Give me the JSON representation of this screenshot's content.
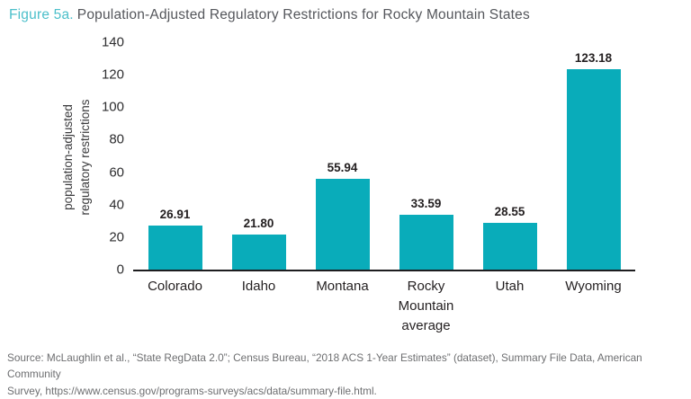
{
  "figure": {
    "title_prefix": "Figure 5a.",
    "title_rest": "Population-Adjusted Regulatory Restrictions for Rocky Mountain States",
    "source_line1": "Source: McLaughlin et al., “State RegData 2.0”; Census Bureau, “2018 ACS 1-Year Estimates” (dataset), Summary File Data, American Community",
    "source_line2": "Survey, https://www.census.gov/programs-surveys/acs/data/summary-file.html."
  },
  "colors": {
    "bar": "#09acba",
    "title_accent": "#4bbfca",
    "title_text": "#54565b",
    "axis_text": "#2d2d2f",
    "value_label_text": "#231f20",
    "source_text": "#6d6e70",
    "baseline": "#1d1d1f"
  },
  "chart_data": {
    "type": "bar",
    "title": "Population-Adjusted Regulatory Restrictions for Rocky Mountain States",
    "categories": [
      "Colorado",
      "Idaho",
      "Montana",
      "Rocky Mountain average",
      "Utah",
      "Wyoming"
    ],
    "values": [
      26.91,
      21.8,
      55.94,
      33.59,
      28.55,
      123.18
    ],
    "value_labels": [
      "26.91",
      "21.80",
      "55.94",
      "33.59",
      "28.55",
      "123.18"
    ],
    "xlabel": "",
    "ylabel": "population-adjusted regulatory restrictions",
    "ylabel_lines": [
      "population-adjusted",
      "regulatory restrictions"
    ],
    "ylim": [
      0,
      140
    ],
    "yticks": [
      0,
      20,
      40,
      60,
      80,
      100,
      120,
      140
    ],
    "grid": false,
    "legend": false
  }
}
